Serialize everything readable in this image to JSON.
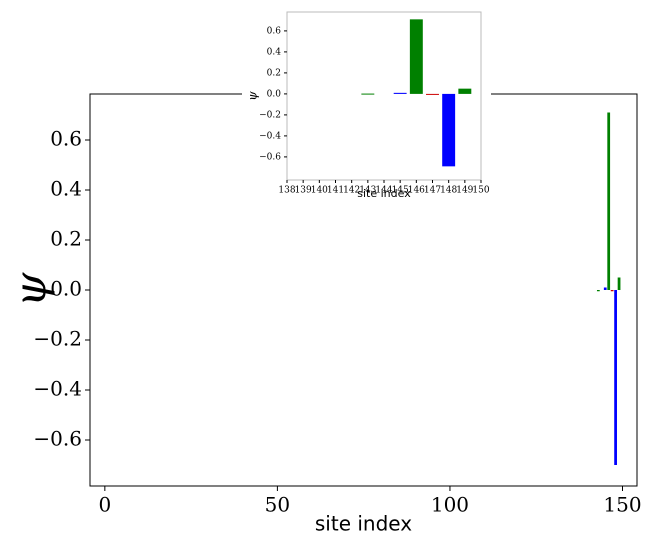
{
  "chart_data": [
    {
      "type": "bar",
      "xlabel": "site index",
      "ylabel": "ψ",
      "x": [
        143,
        145,
        146,
        147,
        148,
        149
      ],
      "values": [
        -0.005,
        0.01,
        0.71,
        -0.005,
        -0.7,
        0.05
      ],
      "colors": [
        "#008000",
        "#0000ff",
        "#008000",
        "#cc0000",
        "#0000ff",
        "#008000"
      ],
      "xlim": [
        -4.3,
        154.2
      ],
      "xticks": [
        0,
        50,
        100,
        150
      ],
      "ylim": [
        -0.784,
        0.784
      ],
      "yticks": [
        {
          "value": -0.6,
          "label": "−0.6"
        },
        {
          "value": -0.4,
          "label": "−0.4"
        },
        {
          "value": -0.2,
          "label": "−0.2"
        },
        {
          "value": 0,
          "label": "0.0"
        },
        0.2,
        0.4,
        0.6
      ]
    },
    {
      "type": "bar",
      "xlabel": "site index",
      "ylabel": "ψ",
      "x": [
        143,
        145,
        146,
        147,
        148,
        149
      ],
      "values": [
        0.003,
        0.01,
        0.71,
        -0.005,
        -0.69,
        0.05
      ],
      "colors": [
        "#008000",
        "#0000ff",
        "#008000",
        "#cc0000",
        "#0000ff",
        "#008000"
      ],
      "xlim": [
        138,
        150
      ],
      "xticks": [
        138,
        139,
        140,
        141,
        142,
        143,
        144,
        145,
        146,
        147,
        148,
        149,
        150
      ],
      "ylim": [
        -0.82,
        0.78
      ],
      "yticks": [
        {
          "value": -0.6,
          "label": "−0.6"
        },
        {
          "value": -0.4,
          "label": "−0.4"
        },
        {
          "value": -0.2,
          "label": "−0.2"
        },
        {
          "value": 0,
          "label": "0.0"
        },
        0.2,
        0.4,
        0.6
      ]
    }
  ]
}
